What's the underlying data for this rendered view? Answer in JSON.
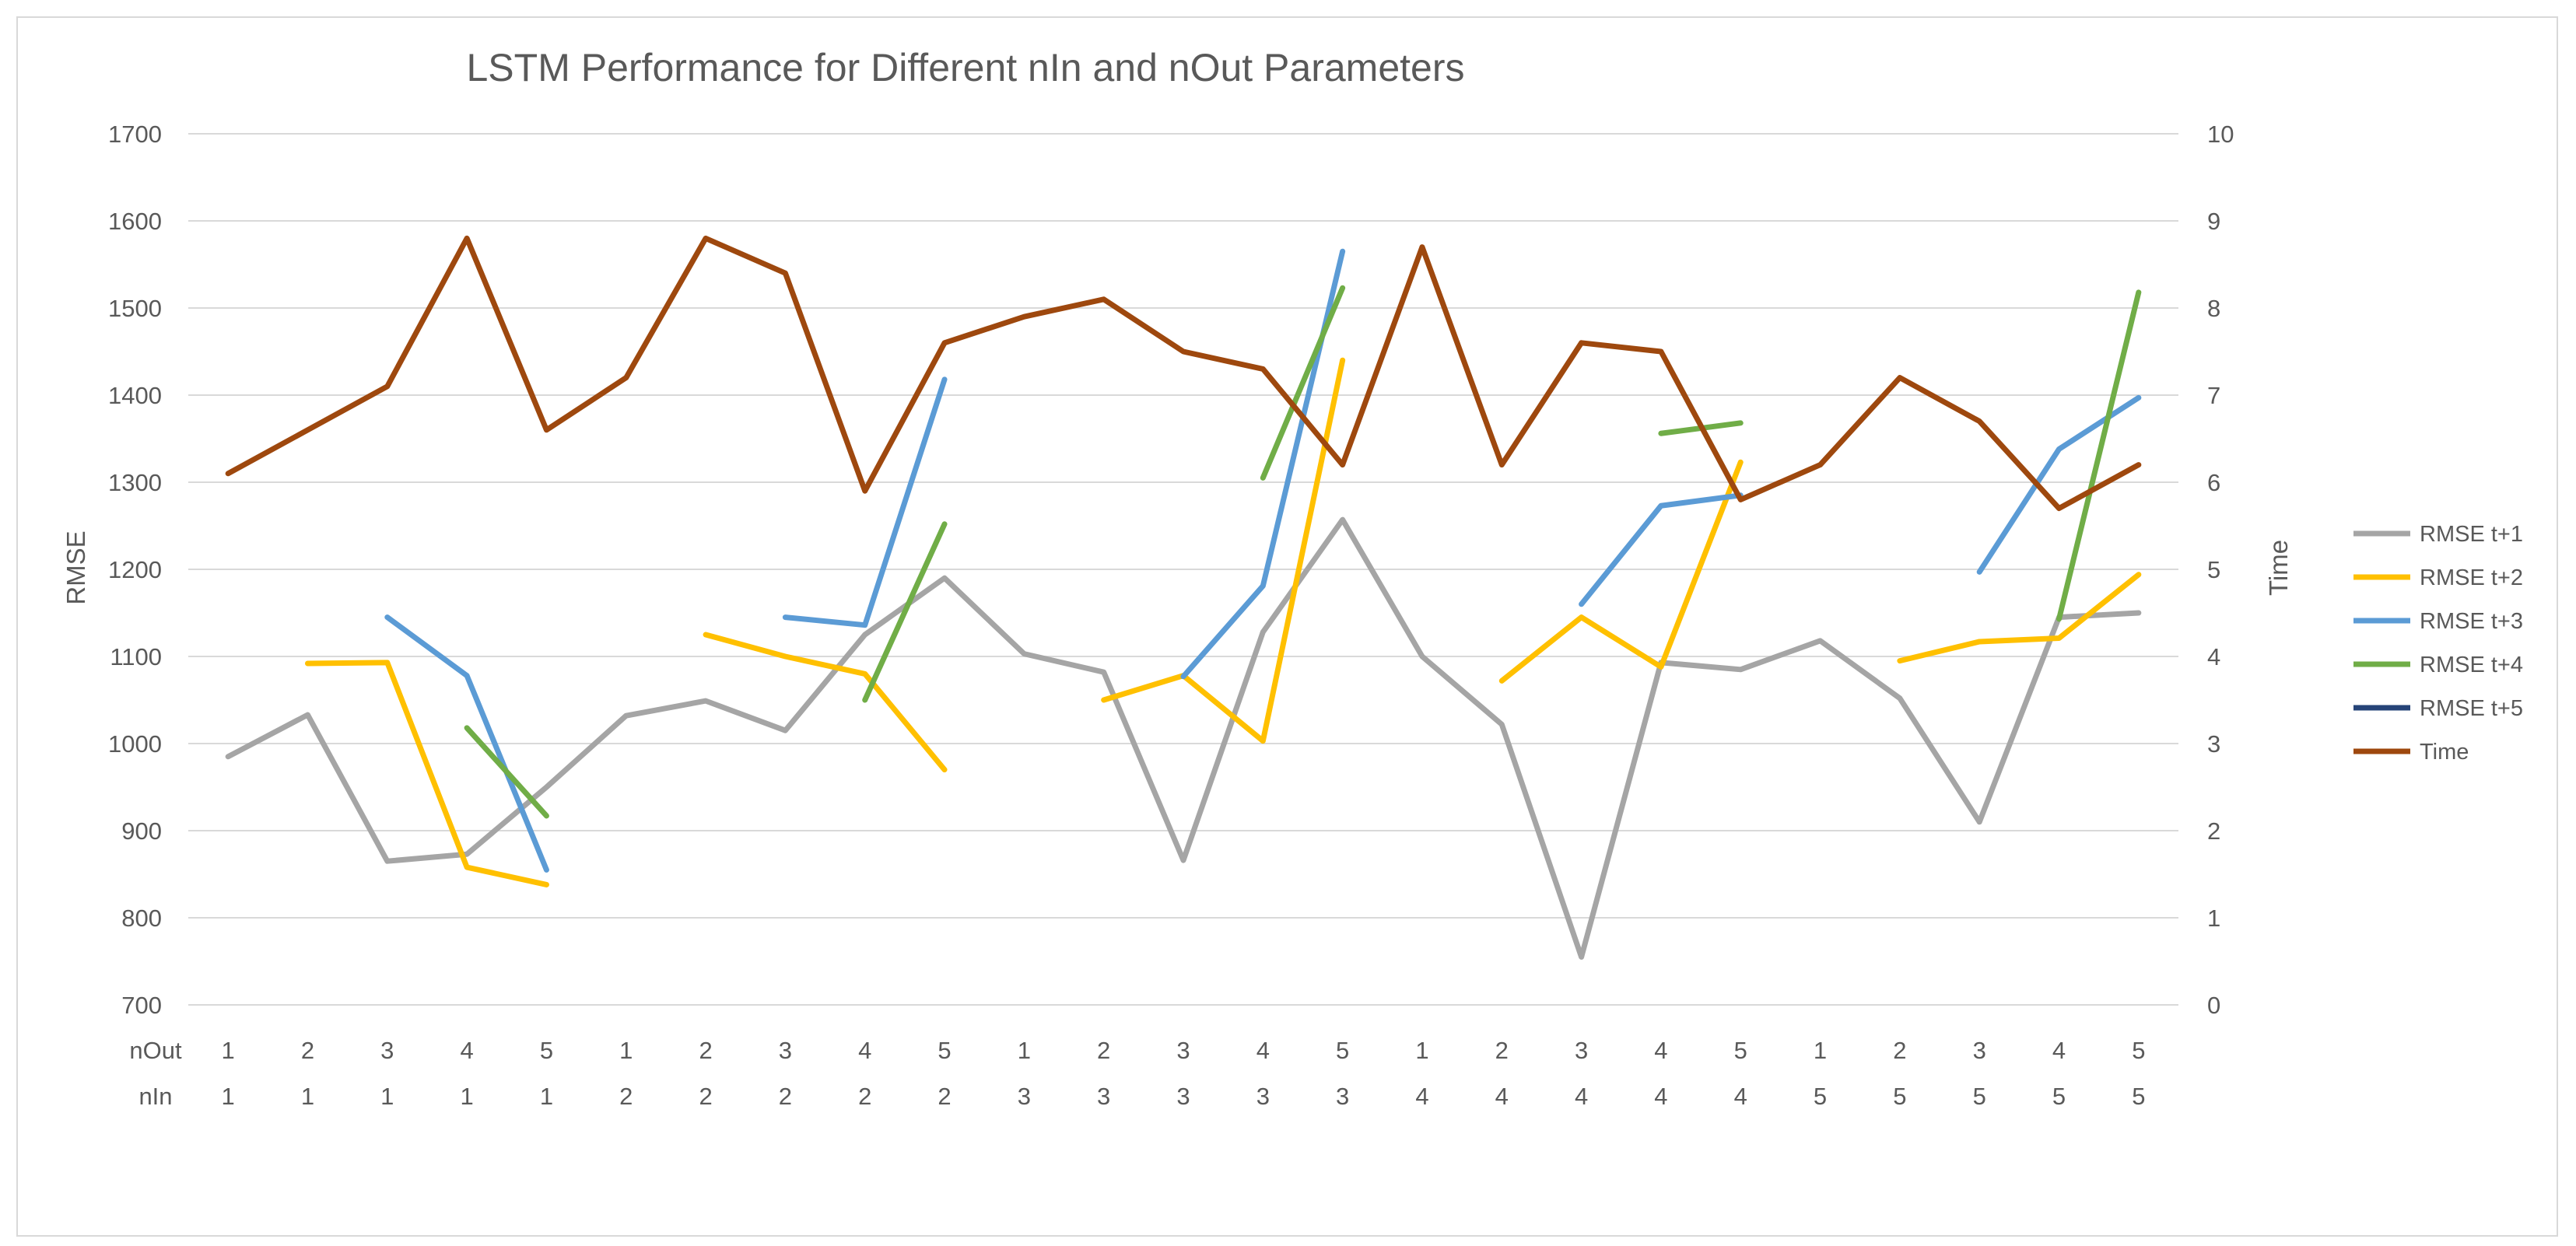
{
  "chart_data": {
    "type": "line",
    "title": "LSTM Performance for Different nIn and nOut Parameters",
    "ylabel": "RMSE",
    "y2label": "Time",
    "ylim": [
      700,
      1700
    ],
    "y_ticks": [
      "700",
      "800",
      "900",
      "1000",
      "1100",
      "1200",
      "1300",
      "1400",
      "1500",
      "1600",
      "1700"
    ],
    "y2lim": [
      0,
      10
    ],
    "y2_ticks": [
      "0",
      "1",
      "2",
      "3",
      "4",
      "5",
      "6",
      "7",
      "8",
      "9",
      "10"
    ],
    "grid": true,
    "legend_position": "right",
    "category_levels": [
      {
        "label": "nOut",
        "values": [
          "1",
          "2",
          "3",
          "4",
          "5",
          "1",
          "2",
          "3",
          "4",
          "5",
          "1",
          "2",
          "3",
          "4",
          "5",
          "1",
          "2",
          "3",
          "4",
          "5",
          "1",
          "2",
          "3",
          "4",
          "5"
        ]
      },
      {
        "label": "nIn",
        "values": [
          "1",
          "1",
          "1",
          "1",
          "1",
          "2",
          "2",
          "2",
          "2",
          "2",
          "3",
          "3",
          "3",
          "3",
          "3",
          "4",
          "4",
          "4",
          "4",
          "4",
          "5",
          "5",
          "5",
          "5",
          "5"
        ]
      }
    ],
    "series": [
      {
        "name": "RMSE t+1",
        "axis": "left",
        "color": "#a5a5a5",
        "values": [
          985,
          1033,
          865,
          873,
          950,
          1032,
          1049,
          1015,
          1125,
          1190,
          1103,
          1082,
          866,
          1128,
          1257,
          1100,
          1022,
          755,
          1093,
          1085,
          1118,
          1052,
          910,
          1145,
          1150
        ]
      },
      {
        "name": "RMSE t+2",
        "axis": "left",
        "color": "#ffc000",
        "values": [
          null,
          1092,
          1093,
          858,
          838,
          null,
          1125,
          1100,
          1080,
          970,
          null,
          1050,
          1078,
          1003,
          1440,
          null,
          1072,
          1145,
          1088,
          1323,
          null,
          1095,
          1117,
          1121,
          1194
        ]
      },
      {
        "name": "RMSE t+3",
        "axis": "left",
        "color": "#5b9bd5",
        "values": [
          null,
          null,
          1145,
          1078,
          855,
          null,
          null,
          1145,
          1136,
          1418,
          null,
          null,
          1077,
          1181,
          1565,
          null,
          null,
          1160,
          1273,
          1285,
          null,
          null,
          1197,
          1338,
          1397
        ]
      },
      {
        "name": "RMSE t+4",
        "axis": "left",
        "color": "#70ad47",
        "values": [
          null,
          null,
          null,
          1018,
          917,
          null,
          null,
          null,
          1050,
          1252,
          null,
          null,
          null,
          1305,
          1523,
          null,
          null,
          null,
          1356,
          1368,
          null,
          null,
          null,
          1143,
          1518
        ]
      },
      {
        "name": "RMSE t+5",
        "axis": "left",
        "color": "#264478",
        "values": [
          null,
          null,
          null,
          null,
          null,
          null,
          null,
          null,
          null,
          null,
          null,
          null,
          null,
          null,
          null,
          null,
          null,
          null,
          null,
          null,
          null,
          null,
          null,
          null,
          null
        ]
      },
      {
        "name": "Time",
        "axis": "right",
        "color": "#9e480e",
        "values": [
          6.1,
          6.6,
          7.1,
          8.8,
          6.6,
          7.2,
          8.8,
          8.4,
          5.9,
          7.6,
          7.9,
          8.1,
          7.5,
          7.3,
          6.2,
          8.7,
          6.2,
          7.6,
          7.5,
          5.8,
          6.2,
          7.2,
          6.7,
          5.7,
          6.2
        ]
      }
    ]
  }
}
